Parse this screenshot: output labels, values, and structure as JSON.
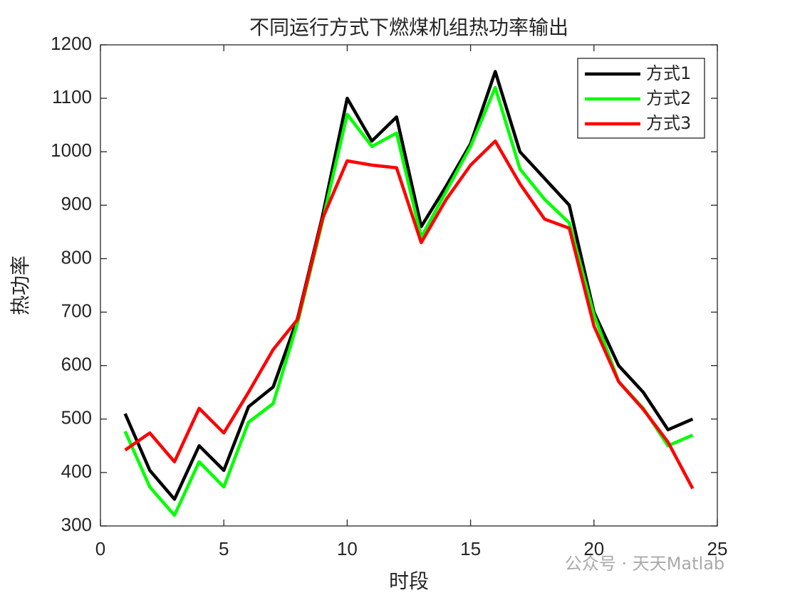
{
  "chart_data": {
    "type": "line",
    "title": "不同运行方式下燃煤机组热功率输出",
    "x_label": "时段",
    "y_label": "热功率",
    "x": [
      1,
      2,
      3,
      4,
      5,
      6,
      7,
      8,
      9,
      10,
      11,
      12,
      13,
      14,
      15,
      16,
      17,
      18,
      19,
      20,
      21,
      22,
      23,
      24
    ],
    "series": [
      {
        "name": "方式1",
        "color": "#000000",
        "values": [
          510,
          404,
          350,
          450,
          404,
          523,
          560,
          690,
          880,
          1100,
          1020,
          1065,
          860,
          935,
          1015,
          1150,
          1000,
          950,
          900,
          700,
          600,
          550,
          480,
          500
        ]
      },
      {
        "name": "方式2",
        "color": "#00ff00",
        "values": [
          477,
          373,
          320,
          420,
          373,
          494,
          529,
          682,
          870,
          1070,
          1010,
          1035,
          840,
          925,
          1010,
          1120,
          968,
          911,
          867,
          695,
          570,
          520,
          450,
          470
        ]
      },
      {
        "name": "方式3",
        "color": "#ff0000",
        "values": [
          442,
          474,
          420,
          520,
          474,
          550,
          630,
          687,
          875,
          983,
          975,
          970,
          830,
          910,
          975,
          1020,
          940,
          874,
          857,
          674,
          570,
          518,
          457,
          370
        ]
      }
    ],
    "xlim": [
      0,
      25
    ],
    "xticks": [
      0,
      5,
      10,
      15,
      20,
      25
    ],
    "ylim": [
      300,
      1200
    ],
    "yticks": [
      300,
      400,
      500,
      600,
      700,
      800,
      900,
      1000,
      1100,
      1200
    ],
    "legend": "top-right",
    "watermark": "公众号 · 天天Matlab"
  }
}
